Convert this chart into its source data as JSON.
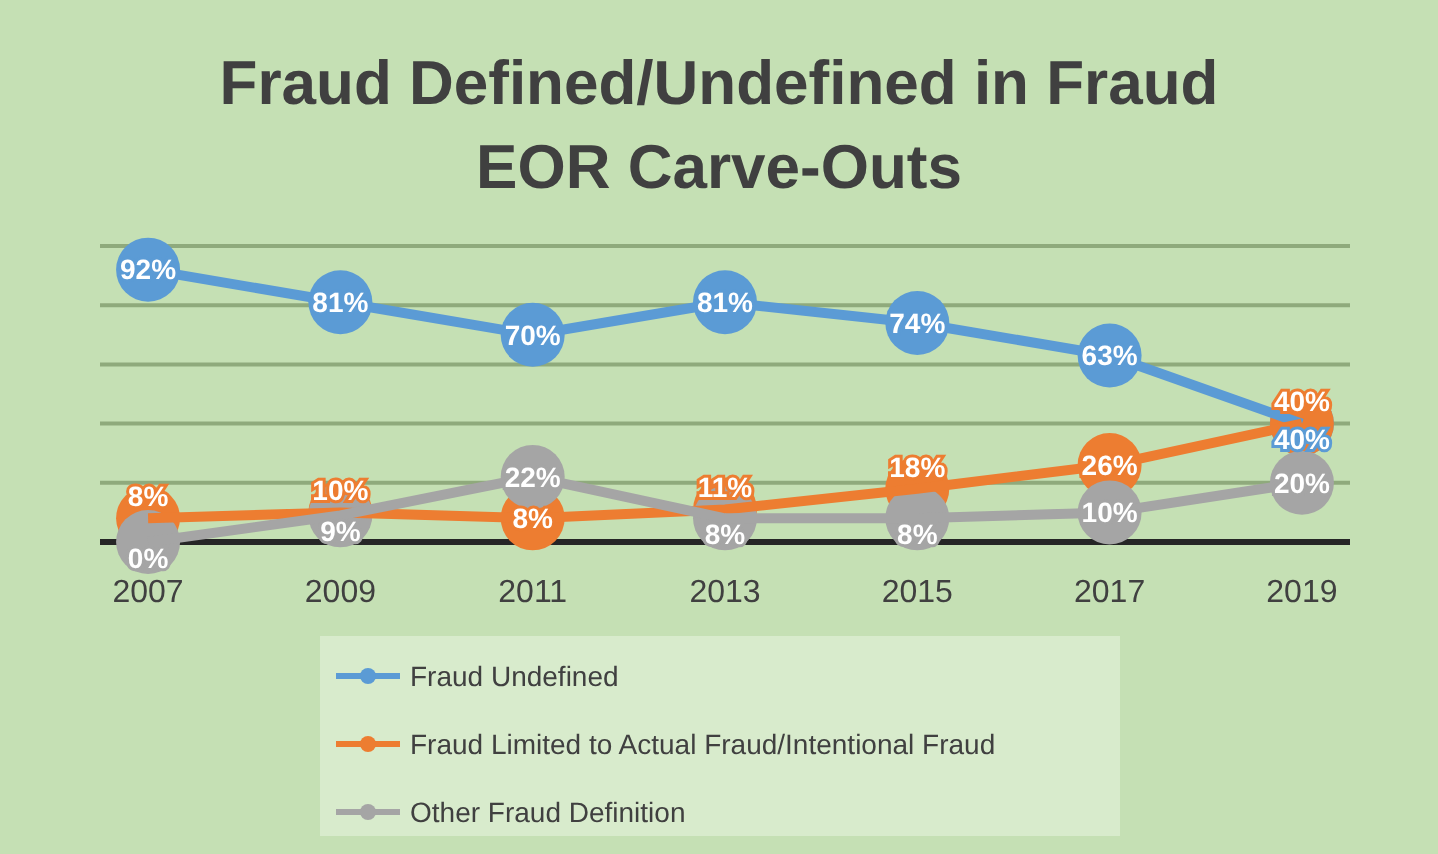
{
  "chart_data": {
    "type": "line",
    "title": "Fraud Defined/Undefined in Fraud\nEOR Carve-Outs",
    "categories": [
      "2007",
      "2009",
      "2011",
      "2013",
      "2015",
      "2017",
      "2019"
    ],
    "ylim": [
      0,
      100
    ],
    "yticks": [
      {
        "value": 0,
        "label": null
      },
      {
        "value": 20,
        "label": null
      },
      {
        "value": 40,
        "label": null
      },
      {
        "value": 60,
        "label": null
      },
      {
        "value": 80,
        "label": null
      },
      {
        "value": 100,
        "label": null
      }
    ],
    "tick_labels": "x",
    "grid": "y",
    "legend": "bottom",
    "marker": "circle",
    "line_style": "solid",
    "series": [
      {
        "name": "Fraud Undefined",
        "color": "#5b9bd5",
        "values": [
          92,
          81,
          70,
          81,
          74,
          63,
          40
        ],
        "value_labels": [
          "92%",
          "81%",
          "70%",
          "81%",
          "74%",
          "63%",
          "40%"
        ]
      },
      {
        "name": "Fraud Limited to Actual Fraud/Intentional Fraud",
        "color": "#ed7d31",
        "values": [
          8,
          10,
          8,
          11,
          18,
          26,
          40
        ],
        "value_labels": [
          "8%",
          "10%",
          "8%",
          "11%",
          "18%",
          "26%",
          "40%"
        ]
      },
      {
        "name": "Other Fraud Definition",
        "color": "#a5a5a5",
        "values": [
          0,
          9,
          22,
          8,
          8,
          10,
          20
        ],
        "value_labels": [
          "0%",
          "9%",
          "22%",
          "8%",
          "8%",
          "10%",
          "20%"
        ]
      }
    ]
  }
}
